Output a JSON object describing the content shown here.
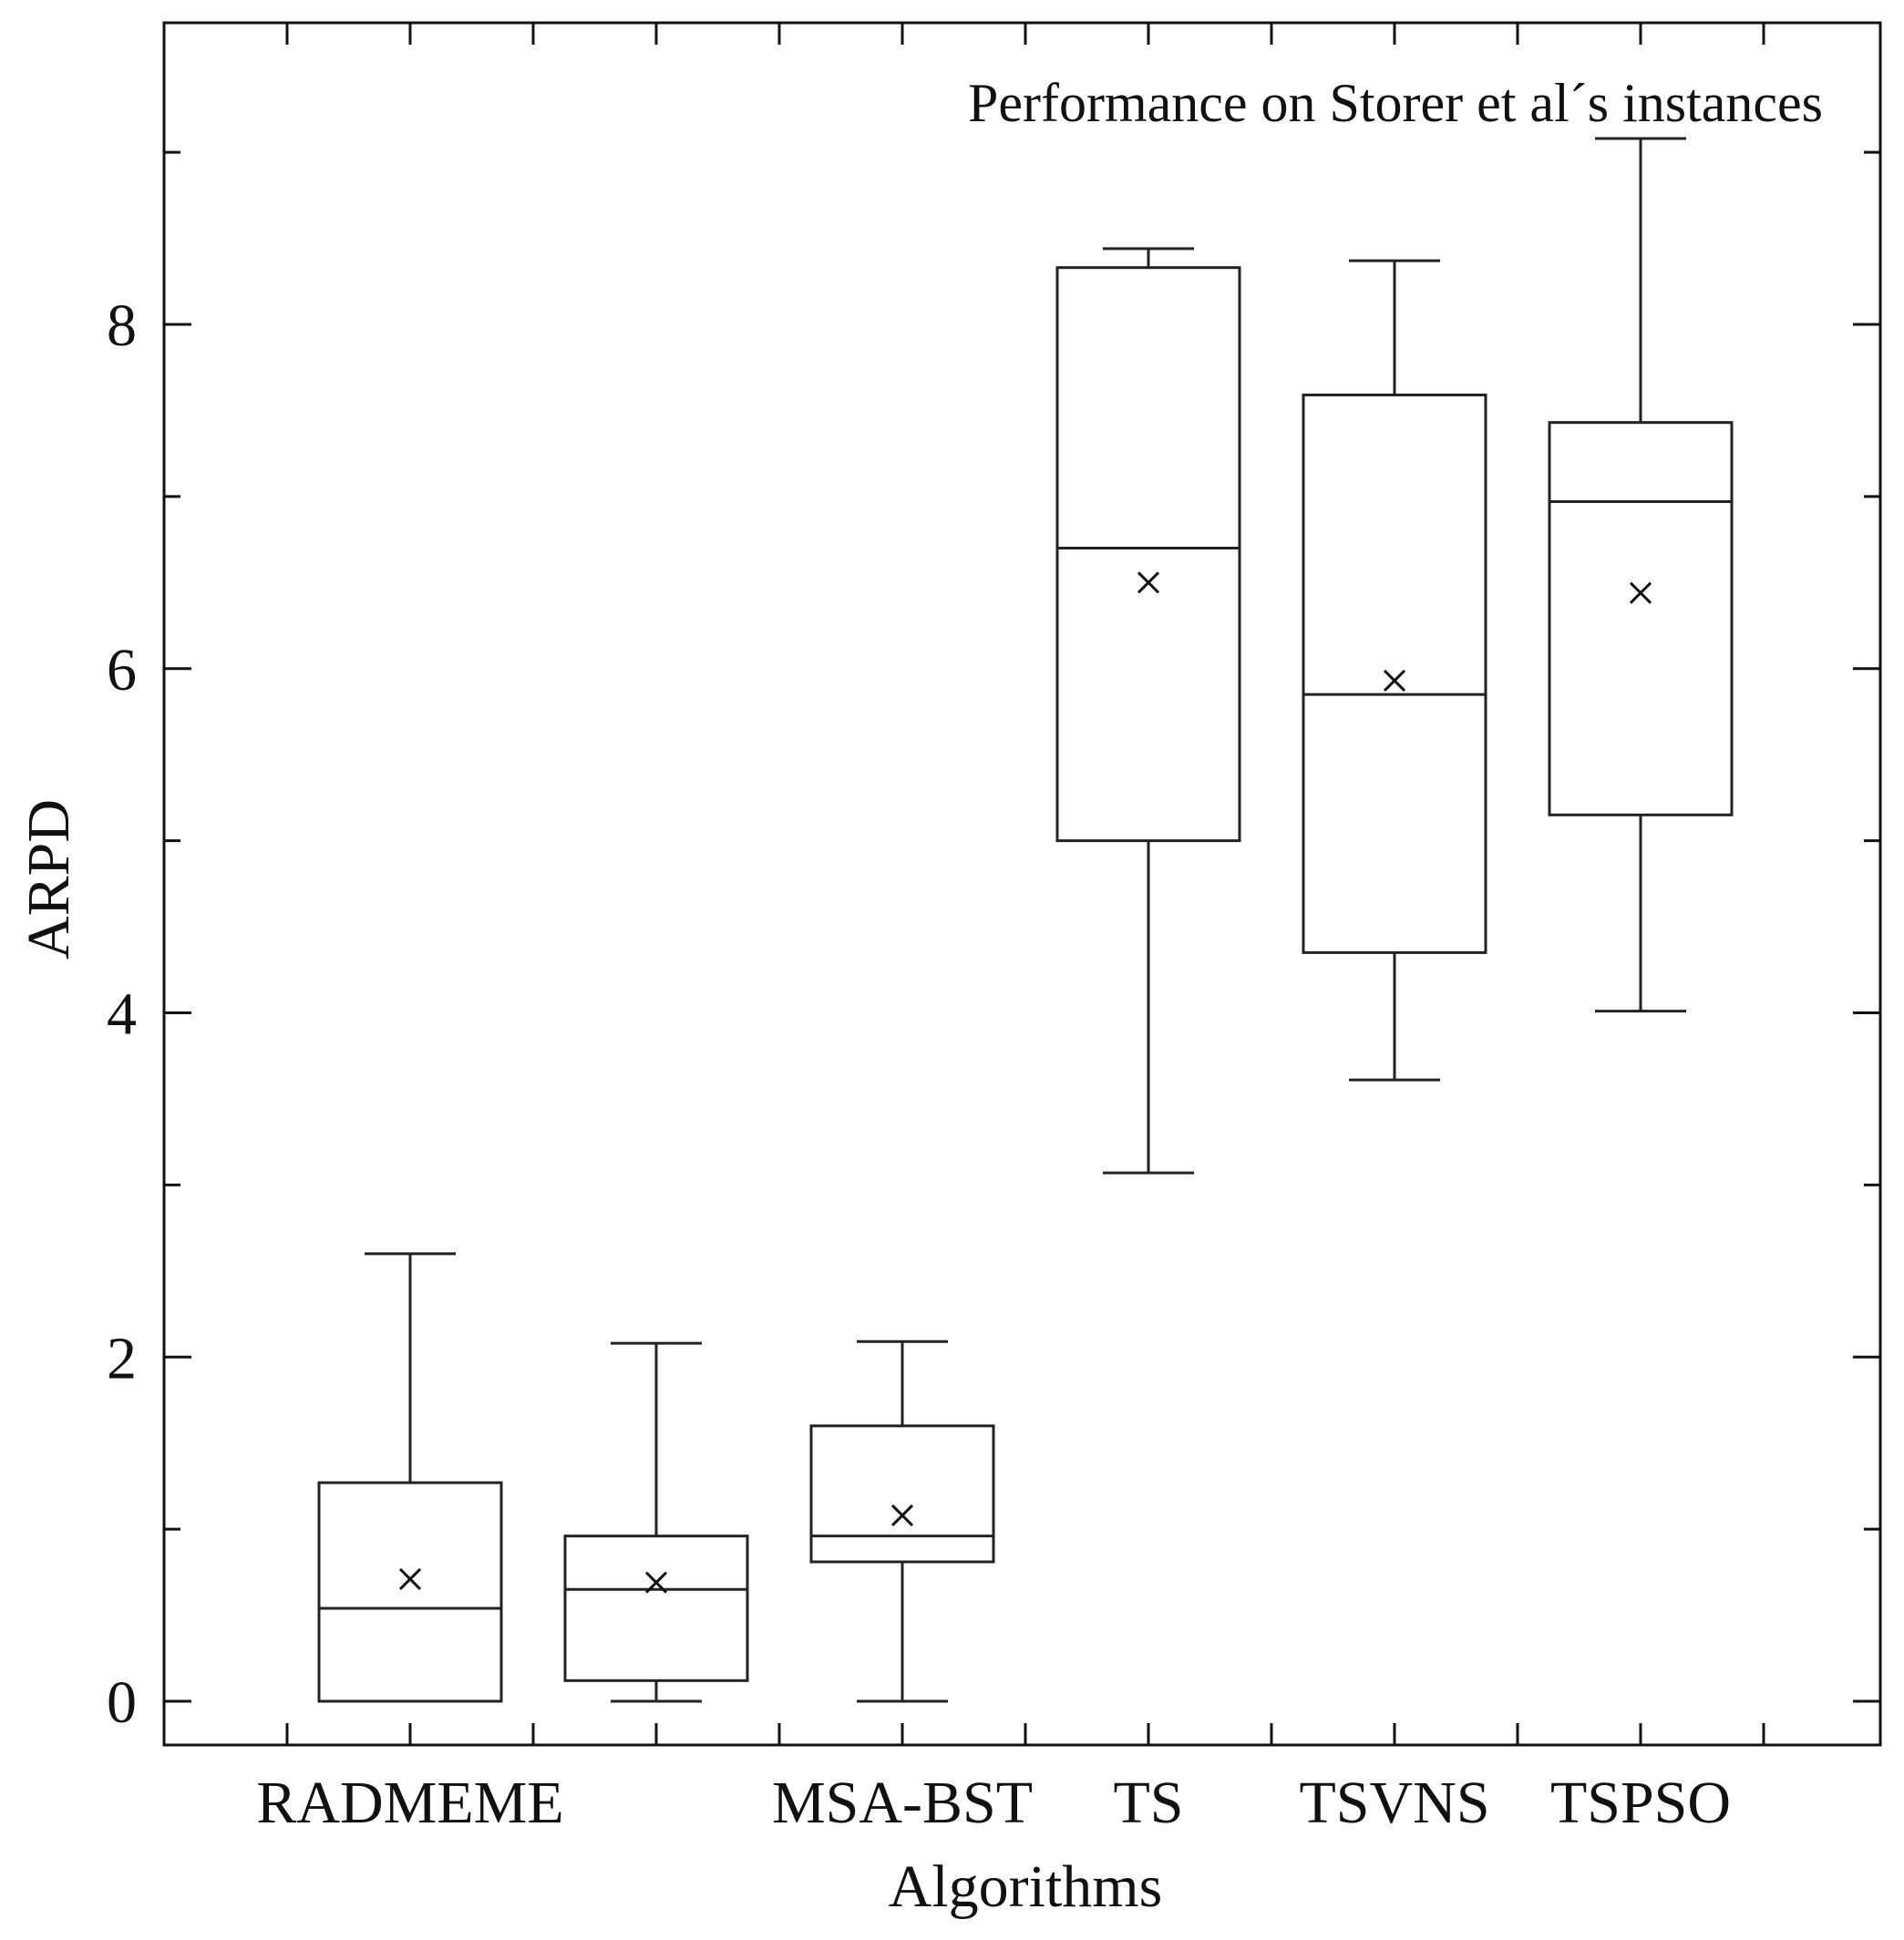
{
  "chart_data": {
    "type": "box",
    "title": "Performance on Storer et al´s instances",
    "xlabel": "Algorithms",
    "ylabel": "ARPD",
    "ylim": [
      -0.25,
      10
    ],
    "yticks": [
      0,
      2,
      4,
      6,
      8
    ],
    "categories": [
      "RADMEME",
      "",
      "MSA-BST",
      "TS",
      "TSVNS",
      "TSPSO"
    ],
    "boxes": [
      {
        "category": "RADMEME",
        "min": 0.0,
        "q1": 0.0,
        "median": 0.54,
        "q3": 1.27,
        "max": 2.6,
        "mean": 0.71
      },
      {
        "category": "",
        "min": 0.0,
        "q1": 0.12,
        "median": 0.65,
        "q3": 0.96,
        "max": 2.08,
        "mean": 0.69
      },
      {
        "category": "MSA-BST",
        "min": 0.0,
        "q1": 0.81,
        "median": 0.96,
        "q3": 1.6,
        "max": 2.09,
        "mean": 1.08
      },
      {
        "category": "TS",
        "min": 3.07,
        "q1": 5.0,
        "median": 6.7,
        "q3": 8.33,
        "max": 8.44,
        "mean": 6.5
      },
      {
        "category": "TSVNS",
        "min": 3.61,
        "q1": 4.35,
        "median": 5.85,
        "q3": 7.59,
        "max": 8.37,
        "mean": 5.93
      },
      {
        "category": "TSPSO",
        "min": 4.01,
        "q1": 5.15,
        "median": 6.97,
        "q3": 7.43,
        "max": 9.08,
        "mean": 6.44
      }
    ]
  }
}
